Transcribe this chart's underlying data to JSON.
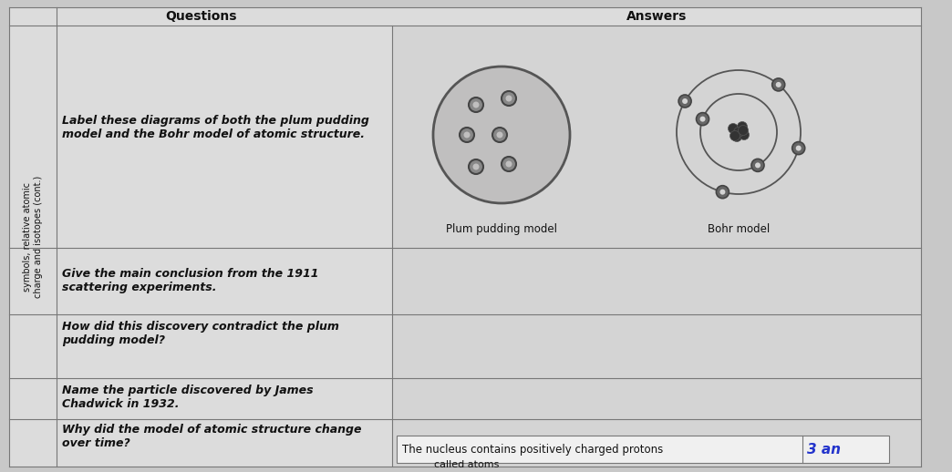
{
  "title_questions": "Questions",
  "title_answers": "Answers",
  "row1_question": "Label these diagrams of both the plum pudding\nmodel and the Bohr model of atomic structure.",
  "plum_label": "Plum pudding model",
  "bohr_label": "Bohr model",
  "row2_question": "Give the main conclusion from the 1911\nscattering experiments.",
  "row3_question": "How did this discovery contradict the plum\npudding model?",
  "row4_question": "Name the particle discovered by James\nChadwick in 1932.",
  "row5_question": "Why did the model of atomic structure change\nover time?",
  "bottom_text": "The nucleus contains positively charged protons",
  "bottom_handwriting": "3 an",
  "bottom_text2": "called atoms",
  "bg_color": "#c8c8c8",
  "paper_color": "#dcdcdc",
  "answer_col_color": "#d4d4d4",
  "white_color": "#f0f0f0",
  "line_color": "#777777",
  "text_color": "#111111",
  "plum_fill": "#c0bfbf",
  "plum_border": "#555555",
  "dot_color": "#444444",
  "orbit_color": "#555555",
  "nucleus_color": "#444444",
  "side_label_1": "symbols, relative atomic",
  "side_label_2": "charge and isotopes (cont.)"
}
